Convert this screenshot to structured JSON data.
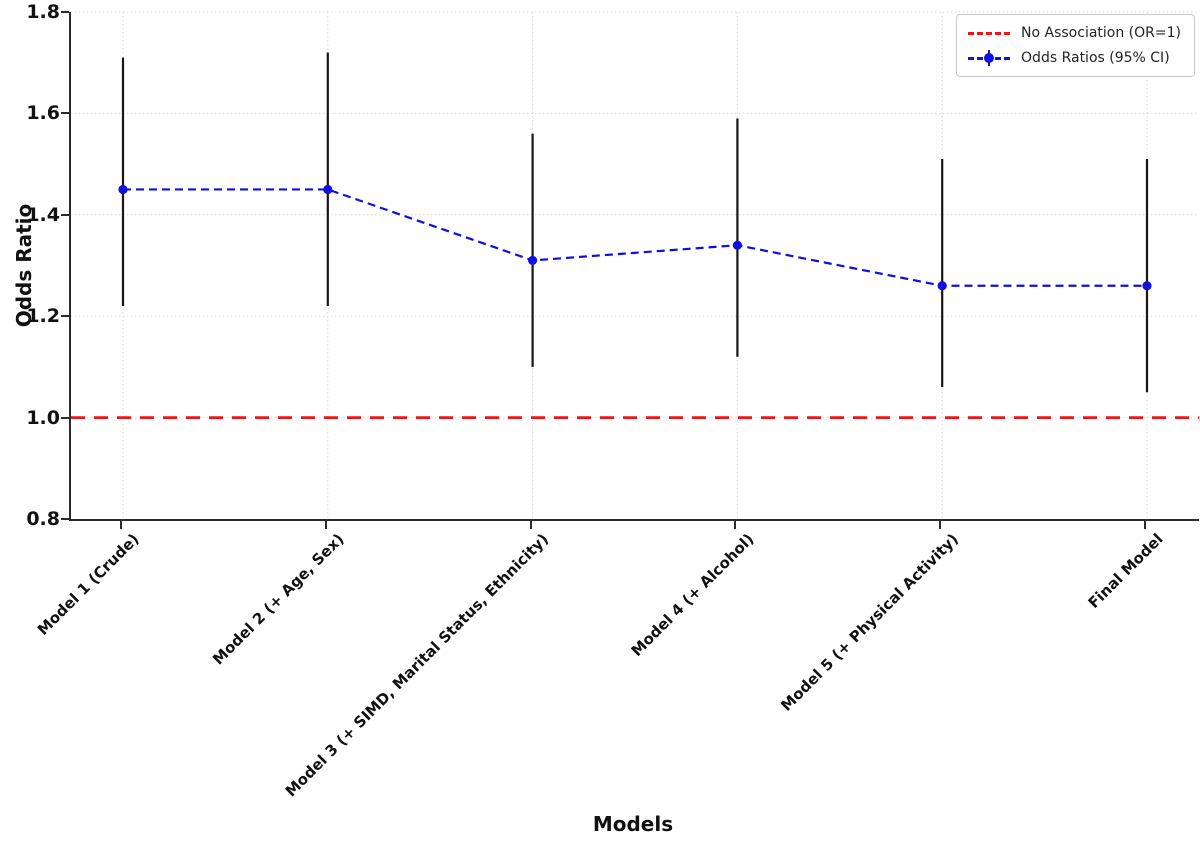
{
  "chart_data": {
    "type": "line",
    "title": "",
    "xlabel": "Models",
    "ylabel": "Odds Ratio",
    "categories": [
      "Model 1 (Crude)",
      "Model 2 (+ Age, Sex)",
      "Model 3 (+ SIMD, Marital Status, Ethnicity)",
      "Model 4 (+ Alcohol)",
      "Model 5 (+ Physical Activity)",
      "Final Model"
    ],
    "series": [
      {
        "name": "Odds Ratios (95% CI)",
        "values": [
          1.45,
          1.45,
          1.31,
          1.34,
          1.26,
          1.26
        ],
        "ci_low": [
          1.22,
          1.22,
          1.1,
          1.12,
          1.06,
          1.05
        ],
        "ci_high": [
          1.71,
          1.72,
          1.56,
          1.59,
          1.51,
          1.51
        ],
        "color": "#0f0fe0",
        "line_style": "dashed",
        "marker": "circle",
        "error_bar_color": "#161616"
      }
    ],
    "reference_line": {
      "name": "No Association (OR=1)",
      "y": 1.0,
      "color": "#f01414",
      "line_style": "dashed"
    },
    "ylim": [
      0.8,
      1.8
    ],
    "yticks": [
      0.8,
      1.0,
      1.2,
      1.4,
      1.6,
      1.8
    ],
    "grid": true,
    "legend_position": "upper right"
  }
}
